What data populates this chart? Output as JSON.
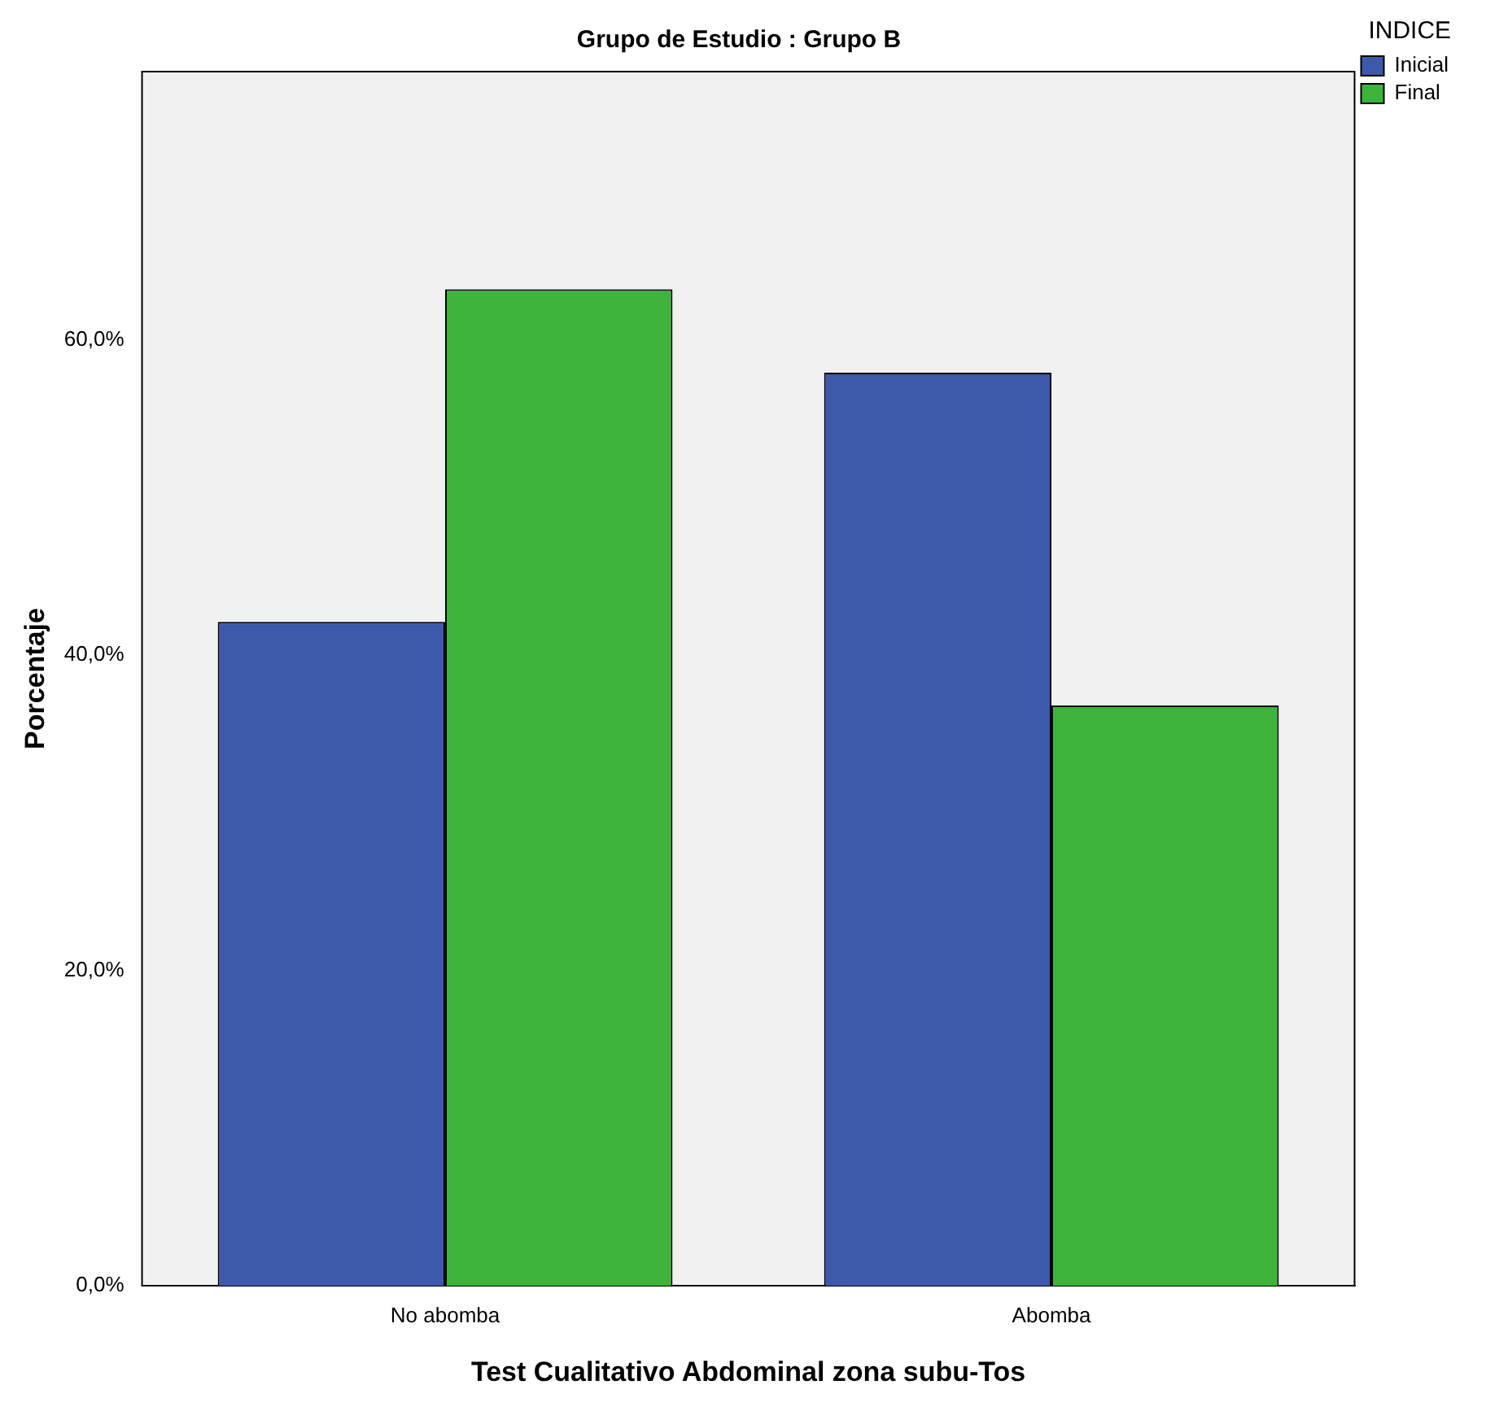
{
  "chart_data": {
    "type": "bar",
    "title": "Grupo de Estudio : Grupo B",
    "xlabel": "Test Cualitativo Abdominal zona subu-Tos",
    "ylabel": "Porcentaje",
    "legend_title": "INDICE",
    "categories": [
      "No abomba",
      "Abomba"
    ],
    "series": [
      {
        "name": "Inicial",
        "color": "#3e58ac",
        "values": [
          42.1,
          57.9
        ]
      },
      {
        "name": "Final",
        "color": "#3cb43c",
        "values": [
          63.2,
          36.8
        ]
      }
    ],
    "ylim": [
      0,
      77
    ],
    "yticks": [
      {
        "value": 0,
        "label": "0,0%"
      },
      {
        "value": 20,
        "label": "20,0%"
      },
      {
        "value": 40,
        "label": "40,0%"
      },
      {
        "value": 60,
        "label": "60,0%"
      }
    ],
    "grid": false,
    "legend": "top right"
  }
}
